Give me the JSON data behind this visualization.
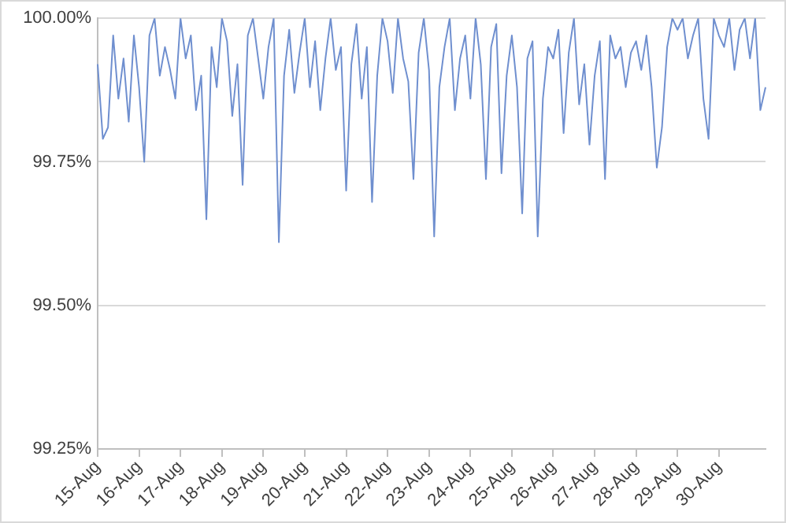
{
  "chart_data": {
    "type": "line",
    "categories": [
      "15-Aug",
      null,
      null,
      null,
      null,
      null,
      null,
      null,
      "16-Aug",
      null,
      null,
      null,
      null,
      null,
      null,
      null,
      "17-Aug",
      null,
      null,
      null,
      null,
      null,
      null,
      null,
      "18-Aug",
      null,
      null,
      null,
      null,
      null,
      null,
      null,
      "19-Aug",
      null,
      null,
      null,
      null,
      null,
      null,
      null,
      "20-Aug",
      null,
      null,
      null,
      null,
      null,
      null,
      null,
      "21-Aug",
      null,
      null,
      null,
      null,
      null,
      null,
      null,
      "22-Aug",
      null,
      null,
      null,
      null,
      null,
      null,
      null,
      "23-Aug",
      null,
      null,
      null,
      null,
      null,
      null,
      null,
      "24-Aug",
      null,
      null,
      null,
      null,
      null,
      null,
      null,
      "25-Aug",
      null,
      null,
      null,
      null,
      null,
      null,
      null,
      "26-Aug",
      null,
      null,
      null,
      null,
      null,
      null,
      null,
      "27-Aug",
      null,
      null,
      null,
      null,
      null,
      null,
      null,
      "28-Aug",
      null,
      null,
      null,
      null,
      null,
      null,
      null,
      "29-Aug",
      null,
      null,
      null,
      null,
      null,
      null,
      null,
      "30-Aug",
      null,
      null,
      null,
      null,
      null,
      null,
      null,
      null,
      null
    ],
    "series": [
      {
        "color": "#6f8fcf",
        "values": [
          99.92,
          99.79,
          99.81,
          99.97,
          99.86,
          99.93,
          99.82,
          99.97,
          99.88,
          99.75,
          99.97,
          100,
          99.9,
          99.95,
          99.91,
          99.86,
          100,
          99.93,
          99.97,
          99.84,
          99.9,
          99.65,
          99.95,
          99.88,
          100,
          99.96,
          99.83,
          99.92,
          99.71,
          99.97,
          100,
          99.93,
          99.86,
          99.95,
          100,
          99.61,
          99.9,
          99.98,
          99.87,
          99.94,
          100,
          99.88,
          99.96,
          99.84,
          99.93,
          100,
          99.91,
          99.95,
          99.7,
          99.92,
          99.99,
          99.86,
          99.95,
          99.68,
          99.9,
          100,
          99.96,
          99.87,
          100,
          99.93,
          99.89,
          99.72,
          99.94,
          100,
          99.91,
          99.62,
          99.88,
          99.95,
          100,
          99.84,
          99.93,
          99.97,
          99.86,
          100,
          99.92,
          99.72,
          99.95,
          99.99,
          99.73,
          99.9,
          99.97,
          99.88,
          99.66,
          99.93,
          99.96,
          99.62,
          99.86,
          99.95,
          99.93,
          99.98,
          99.8,
          99.94,
          100,
          99.85,
          99.92,
          99.78,
          99.9,
          99.96,
          99.72,
          99.97,
          99.93,
          99.95,
          99.88,
          99.94,
          99.96,
          99.91,
          99.97,
          99.88,
          99.74,
          99.81,
          99.95,
          100,
          99.98,
          100,
          99.93,
          99.97,
          100,
          99.86,
          99.79,
          100,
          99.97,
          99.95,
          100,
          99.91,
          99.98,
          100,
          99.93,
          100,
          99.84,
          99.88
        ]
      }
    ],
    "ylim": [
      99.25,
      100
    ],
    "yticks": [
      {
        "value": 99.25,
        "label": "99.25%"
      },
      {
        "value": 99.5,
        "label": "99.50%"
      },
      {
        "value": 99.75,
        "label": "99.75%"
      },
      {
        "value": 100,
        "label": "100.00%"
      }
    ],
    "grid": "y",
    "marker": "none"
  }
}
